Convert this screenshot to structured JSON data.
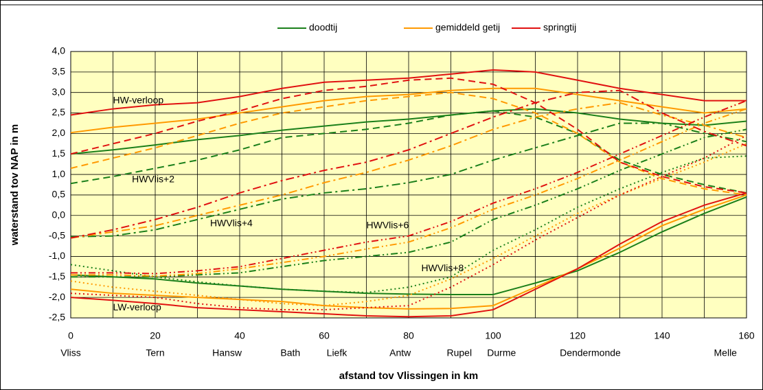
{
  "chart_data": {
    "type": "line",
    "xlabel": "afstand tov Vlissingen in km",
    "ylabel": "waterstand tov NAP in m",
    "x": [
      0,
      10,
      20,
      30,
      40,
      50,
      60,
      70,
      80,
      90,
      100,
      110,
      120,
      130,
      140,
      150,
      160
    ],
    "xlim": [
      0,
      160
    ],
    "xticks": [
      0,
      20,
      40,
      60,
      80,
      100,
      120,
      140,
      160
    ],
    "xminor": [
      10,
      30,
      50,
      70,
      90,
      110,
      130,
      150
    ],
    "ylim": [
      -2.5,
      4
    ],
    "yticks": [
      {
        "value": 4,
        "label": "4,0"
      },
      {
        "value": 3.5,
        "label": "3,5"
      },
      {
        "value": 3,
        "label": "3,0"
      },
      {
        "value": 2.5,
        "label": "2,5"
      },
      {
        "value": 2,
        "label": "2,0"
      },
      {
        "value": 1.5,
        "label": "1,5"
      },
      {
        "value": 1,
        "label": "1,0"
      },
      {
        "value": 0.5,
        "label": "0,5"
      },
      {
        "value": 0,
        "label": "0,0"
      },
      {
        "value": -0.5,
        "label": "-0,5"
      },
      {
        "value": -1,
        "label": "-1,0"
      },
      {
        "value": -1.5,
        "label": "-1,5"
      },
      {
        "value": -2,
        "label": "-2,0"
      },
      {
        "value": -2.5,
        "label": "-2,5"
      }
    ],
    "grid": true,
    "legend": "top",
    "places": {
      "x": [
        0,
        20,
        37,
        52,
        63,
        78,
        92,
        102,
        123,
        155
      ],
      "labels": [
        "Vliss",
        "Tern",
        "Hansw",
        "Bath",
        "Liefk",
        "Antw",
        "Rupel",
        "Durme",
        "Dendermonde",
        "Melle"
      ]
    },
    "annotations": [
      "HW-verloop",
      "HWVlis+2",
      "HWVlis+4",
      "HWVlis+6",
      "HWVlis+8",
      "LW-verloop"
    ],
    "series": [
      {
        "name": "doodtij",
        "color": "#1a7f1a",
        "lines": [
          {
            "dash": "solid",
            "values": [
              1.5,
              1.6,
              1.72,
              1.85,
              1.95,
              2.08,
              2.18,
              2.28,
              2.35,
              2.45,
              2.55,
              2.6,
              2.5,
              2.35,
              2.25,
              2.2,
              2.3
            ]
          },
          {
            "dash": "solid",
            "values": [
              -1.45,
              -1.5,
              -1.55,
              -1.65,
              -1.72,
              -1.8,
              -1.85,
              -1.9,
              -1.92,
              -1.93,
              -1.93,
              -1.65,
              -1.35,
              -0.9,
              -0.4,
              0.05,
              0.45
            ]
          },
          {
            "dash": "dash",
            "values": [
              0.78,
              0.95,
              1.15,
              1.35,
              1.6,
              1.9,
              2.0,
              2.1,
              2.25,
              2.45,
              2.55,
              2.4,
              2.0,
              1.35,
              1.0,
              0.75,
              0.55
            ]
          },
          {
            "dash": "dashdot",
            "values": [
              -0.52,
              -0.5,
              -0.35,
              -0.1,
              0.15,
              0.4,
              0.55,
              0.65,
              0.8,
              1.0,
              1.35,
              1.65,
              1.95,
              2.25,
              2.25,
              2.0,
              1.8
            ]
          },
          {
            "dash": "dashdotdot",
            "values": [
              -1.5,
              -1.5,
              -1.5,
              -1.45,
              -1.4,
              -1.25,
              -1.1,
              -1.0,
              -0.9,
              -0.65,
              -0.1,
              0.25,
              0.65,
              1.1,
              1.5,
              1.9,
              2.1
            ]
          },
          {
            "dash": "dot",
            "values": [
              -1.2,
              -1.35,
              -1.5,
              -1.62,
              -1.72,
              -1.8,
              -1.85,
              -1.88,
              -1.75,
              -1.5,
              -0.85,
              -0.35,
              0.2,
              0.65,
              1.05,
              1.4,
              1.45
            ]
          }
        ]
      },
      {
        "name": "gemiddeld getij",
        "color": "#ff9900",
        "lines": [
          {
            "dash": "solid",
            "values": [
              2.02,
              2.15,
              2.25,
              2.35,
              2.5,
              2.65,
              2.8,
              2.9,
              2.95,
              3.05,
              3.1,
              3.1,
              2.95,
              2.8,
              2.65,
              2.5,
              2.6
            ]
          },
          {
            "dash": "solid",
            "values": [
              -1.8,
              -1.9,
              -1.95,
              -2.0,
              -2.05,
              -2.1,
              -2.2,
              -2.25,
              -2.28,
              -2.27,
              -2.2,
              -1.75,
              -1.3,
              -0.8,
              -0.25,
              0.15,
              0.5
            ]
          },
          {
            "dash": "dash",
            "values": [
              1.15,
              1.4,
              1.65,
              1.95,
              2.25,
              2.5,
              2.65,
              2.8,
              2.9,
              3.0,
              2.85,
              2.5,
              2.0,
              1.3,
              0.9,
              0.65,
              0.5
            ]
          },
          {
            "dash": "dashdot",
            "values": [
              -0.55,
              -0.4,
              -0.25,
              0.0,
              0.25,
              0.5,
              0.8,
              1.05,
              1.35,
              1.7,
              2.1,
              2.4,
              2.6,
              2.75,
              2.45,
              2.2,
              1.9
            ]
          },
          {
            "dash": "dashdotdot",
            "values": [
              -1.45,
              -1.45,
              -1.48,
              -1.42,
              -1.3,
              -1.15,
              -1.0,
              -0.82,
              -0.65,
              -0.3,
              0.15,
              0.5,
              0.9,
              1.35,
              1.8,
              2.25,
              2.6
            ]
          },
          {
            "dash": "dot",
            "values": [
              -1.6,
              -1.75,
              -1.85,
              -1.95,
              -2.05,
              -2.15,
              -2.2,
              -2.1,
              -1.95,
              -1.55,
              -1.05,
              -0.5,
              0.05,
              0.5,
              0.9,
              1.3,
              1.75
            ]
          }
        ]
      },
      {
        "name": "springtij",
        "color": "#e01010",
        "lines": [
          {
            "dash": "solid",
            "values": [
              2.45,
              2.6,
              2.7,
              2.75,
              2.9,
              3.1,
              3.25,
              3.3,
              3.35,
              3.45,
              3.55,
              3.5,
              3.3,
              3.1,
              2.95,
              2.8,
              2.8
            ]
          },
          {
            "dash": "solid",
            "values": [
              -2.0,
              -2.07,
              -2.15,
              -2.25,
              -2.3,
              -2.35,
              -2.4,
              -2.45,
              -2.47,
              -2.45,
              -2.3,
              -1.8,
              -1.3,
              -0.7,
              -0.15,
              0.25,
              0.55
            ]
          },
          {
            "dash": "dash",
            "values": [
              1.5,
              1.75,
              2.0,
              2.3,
              2.55,
              2.85,
              3.05,
              3.15,
              3.3,
              3.35,
              3.2,
              2.75,
              2.1,
              1.3,
              0.95,
              0.7,
              0.55
            ]
          },
          {
            "dash": "dashdot",
            "values": [
              -0.55,
              -0.35,
              -0.1,
              0.2,
              0.55,
              0.85,
              1.1,
              1.3,
              1.6,
              2.0,
              2.4,
              2.75,
              3.0,
              3.05,
              2.5,
              2.05,
              1.7
            ]
          },
          {
            "dash": "dashdotdot",
            "values": [
              -1.4,
              -1.4,
              -1.42,
              -1.35,
              -1.25,
              -1.05,
              -0.85,
              -0.65,
              -0.5,
              -0.15,
              0.3,
              0.65,
              1.05,
              1.5,
              1.95,
              2.4,
              2.8
            ]
          },
          {
            "dash": "dot",
            "values": [
              -1.9,
              -1.95,
              -2.0,
              -2.15,
              -2.25,
              -2.3,
              -2.3,
              -2.25,
              -2.2,
              -1.75,
              -1.2,
              -0.6,
              -0.05,
              0.5,
              0.95,
              1.4,
              1.95
            ]
          }
        ]
      }
    ]
  }
}
